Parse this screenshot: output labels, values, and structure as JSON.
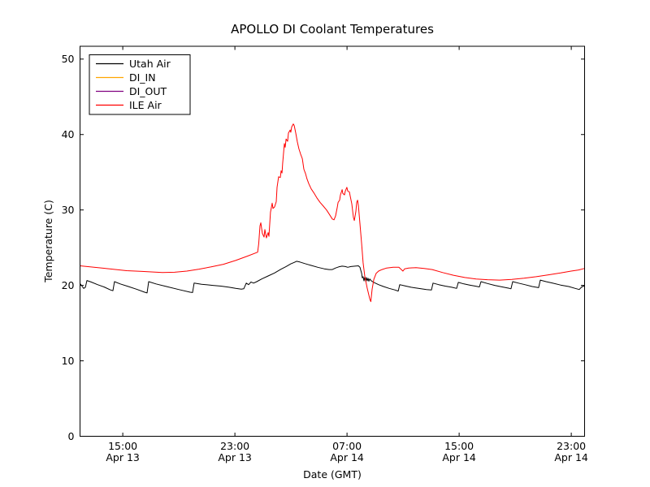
{
  "window": {
    "background": "#ffffff"
  },
  "chart_data": {
    "type": "line",
    "title": "APOLLO DI Coolant Temperatures",
    "xlabel": "Date (GMT)",
    "ylabel": "Temperature (C)",
    "grid": false,
    "legend_position": "upper-left",
    "x_axis": {
      "range_hours": [
        0,
        36
      ],
      "ticks": [
        {
          "t": 3.05,
          "time": "15:00",
          "date": "Apr 13"
        },
        {
          "t": 11.05,
          "time": "23:00",
          "date": "Apr 13"
        },
        {
          "t": 19.05,
          "time": "07:00",
          "date": "Apr 14"
        },
        {
          "t": 27.05,
          "time": "15:00",
          "date": "Apr 14"
        },
        {
          "t": 35.05,
          "time": "23:00",
          "date": "Apr 14"
        }
      ]
    },
    "y_axis": {
      "min": 0,
      "max": 51.7,
      "ticks": [
        0,
        10,
        20,
        30,
        40,
        50
      ]
    },
    "series": [
      {
        "name": "Utah Air",
        "color": "#000000",
        "points": [
          [
            0,
            20.25
          ],
          [
            0.14,
            19.9
          ],
          [
            0.26,
            19.6
          ],
          [
            0.38,
            19.75
          ],
          [
            0.49,
            20.65
          ],
          [
            0.78,
            20.45
          ],
          [
            1.25,
            20.1
          ],
          [
            1.71,
            19.8
          ],
          [
            2.17,
            19.4
          ],
          [
            2.35,
            19.3
          ],
          [
            2.46,
            20.5
          ],
          [
            2.87,
            20.2
          ],
          [
            3.45,
            19.85
          ],
          [
            4.03,
            19.5
          ],
          [
            4.61,
            19.1
          ],
          [
            4.78,
            19.0
          ],
          [
            4.9,
            20.5
          ],
          [
            5.42,
            20.2
          ],
          [
            6.17,
            19.85
          ],
          [
            7.04,
            19.45
          ],
          [
            7.86,
            19.1
          ],
          [
            8.03,
            19.05
          ],
          [
            8.14,
            20.3
          ],
          [
            8.67,
            20.15
          ],
          [
            9.48,
            20.0
          ],
          [
            10.06,
            19.9
          ],
          [
            10.64,
            19.75
          ],
          [
            11.1,
            19.6
          ],
          [
            11.51,
            19.5
          ],
          [
            11.68,
            19.55
          ],
          [
            11.86,
            20.3
          ],
          [
            12.03,
            20.1
          ],
          [
            12.2,
            20.45
          ],
          [
            12.38,
            20.3
          ],
          [
            12.61,
            20.5
          ],
          [
            12.96,
            20.85
          ],
          [
            13.42,
            21.25
          ],
          [
            13.88,
            21.65
          ],
          [
            14.35,
            22.15
          ],
          [
            14.7,
            22.5
          ],
          [
            15.04,
            22.85
          ],
          [
            15.28,
            23.05
          ],
          [
            15.45,
            23.2
          ],
          [
            15.68,
            23.1
          ],
          [
            16.03,
            22.9
          ],
          [
            16.49,
            22.65
          ],
          [
            16.96,
            22.4
          ],
          [
            17.42,
            22.2
          ],
          [
            17.77,
            22.1
          ],
          [
            18.0,
            22.1
          ],
          [
            18.23,
            22.3
          ],
          [
            18.46,
            22.45
          ],
          [
            18.7,
            22.55
          ],
          [
            18.93,
            22.5
          ],
          [
            19.1,
            22.4
          ],
          [
            19.33,
            22.5
          ],
          [
            19.62,
            22.55
          ],
          [
            19.86,
            22.6
          ],
          [
            19.97,
            22.4
          ],
          [
            20.09,
            21.6
          ],
          [
            20.14,
            21.0
          ],
          [
            20.2,
            21.15
          ],
          [
            20.26,
            20.6
          ],
          [
            20.32,
            21.1
          ],
          [
            20.38,
            20.55
          ],
          [
            20.43,
            21.05
          ],
          [
            20.49,
            20.6
          ],
          [
            20.55,
            20.95
          ],
          [
            20.61,
            20.55
          ],
          [
            20.67,
            20.85
          ],
          [
            20.78,
            20.6
          ],
          [
            20.96,
            20.4
          ],
          [
            21.3,
            20.1
          ],
          [
            21.65,
            19.85
          ],
          [
            22.06,
            19.6
          ],
          [
            22.46,
            19.4
          ],
          [
            22.7,
            19.25
          ],
          [
            22.81,
            20.1
          ],
          [
            23.16,
            19.95
          ],
          [
            23.62,
            19.75
          ],
          [
            24.14,
            19.6
          ],
          [
            24.72,
            19.45
          ],
          [
            25.07,
            19.4
          ],
          [
            25.19,
            20.3
          ],
          [
            25.59,
            20.1
          ],
          [
            26.06,
            19.9
          ],
          [
            26.52,
            19.75
          ],
          [
            26.87,
            19.6
          ],
          [
            26.99,
            20.4
          ],
          [
            27.39,
            20.2
          ],
          [
            27.8,
            20.05
          ],
          [
            28.2,
            19.9
          ],
          [
            28.49,
            19.8
          ],
          [
            28.61,
            20.5
          ],
          [
            29.07,
            20.25
          ],
          [
            29.59,
            20.0
          ],
          [
            30.12,
            19.8
          ],
          [
            30.64,
            19.6
          ],
          [
            30.75,
            19.55
          ],
          [
            30.87,
            20.5
          ],
          [
            31.28,
            20.3
          ],
          [
            31.74,
            20.1
          ],
          [
            32.26,
            19.85
          ],
          [
            32.72,
            19.7
          ],
          [
            32.84,
            20.7
          ],
          [
            33.25,
            20.5
          ],
          [
            33.71,
            20.3
          ],
          [
            34.29,
            20.05
          ],
          [
            34.87,
            19.85
          ],
          [
            35.33,
            19.6
          ],
          [
            35.62,
            19.45
          ],
          [
            35.8,
            19.8
          ],
          [
            36.0,
            19.95
          ]
        ]
      },
      {
        "name": "DI_IN",
        "color": "#ffa500",
        "points": []
      },
      {
        "name": "DI_OUT",
        "color": "#800080",
        "points": []
      },
      {
        "name": "ILE Air",
        "color": "#ff0000",
        "points": [
          [
            0,
            22.6
          ],
          [
            1.83,
            22.25
          ],
          [
            3.33,
            21.95
          ],
          [
            4.43,
            21.85
          ],
          [
            5.88,
            21.7
          ],
          [
            6.75,
            21.75
          ],
          [
            7.62,
            21.9
          ],
          [
            8.49,
            22.15
          ],
          [
            9.36,
            22.45
          ],
          [
            10.23,
            22.8
          ],
          [
            11.1,
            23.3
          ],
          [
            11.97,
            23.9
          ],
          [
            12.67,
            24.4
          ],
          [
            12.75,
            25.5
          ],
          [
            12.84,
            27.9
          ],
          [
            12.9,
            28.3
          ],
          [
            13.01,
            26.9
          ],
          [
            13.13,
            26.4
          ],
          [
            13.19,
            27.4
          ],
          [
            13.3,
            26.3
          ],
          [
            13.42,
            27.0
          ],
          [
            13.48,
            26.5
          ],
          [
            13.59,
            29.7
          ],
          [
            13.71,
            30.9
          ],
          [
            13.77,
            30.2
          ],
          [
            13.88,
            30.4
          ],
          [
            14.0,
            31.1
          ],
          [
            14.06,
            33.0
          ],
          [
            14.17,
            34.4
          ],
          [
            14.29,
            34.3
          ],
          [
            14.35,
            35.2
          ],
          [
            14.41,
            34.9
          ],
          [
            14.46,
            36.2
          ],
          [
            14.58,
            38.8
          ],
          [
            14.64,
            38.3
          ],
          [
            14.7,
            39.4
          ],
          [
            14.81,
            39.1
          ],
          [
            14.87,
            40.2
          ],
          [
            14.99,
            40.6
          ],
          [
            15.04,
            40.3
          ],
          [
            15.1,
            41.0
          ],
          [
            15.22,
            41.4
          ],
          [
            15.28,
            41.2
          ],
          [
            15.39,
            40.2
          ],
          [
            15.51,
            39.0
          ],
          [
            15.62,
            38.1
          ],
          [
            15.74,
            37.4
          ],
          [
            15.86,
            36.8
          ],
          [
            15.97,
            35.4
          ],
          [
            16.09,
            34.8
          ],
          [
            16.2,
            34.1
          ],
          [
            16.32,
            33.5
          ],
          [
            16.49,
            32.8
          ],
          [
            16.67,
            32.3
          ],
          [
            16.9,
            31.6
          ],
          [
            17.13,
            31.0
          ],
          [
            17.36,
            30.5
          ],
          [
            17.59,
            30.0
          ],
          [
            17.83,
            29.3
          ],
          [
            18.0,
            28.8
          ],
          [
            18.12,
            28.7
          ],
          [
            18.23,
            29.2
          ],
          [
            18.35,
            30.3
          ],
          [
            18.41,
            31.0
          ],
          [
            18.52,
            31.3
          ],
          [
            18.58,
            32.0
          ],
          [
            18.7,
            32.7
          ],
          [
            18.75,
            32.2
          ],
          [
            18.87,
            32.0
          ],
          [
            18.93,
            32.5
          ],
          [
            19.04,
            33.0
          ],
          [
            19.1,
            32.5
          ],
          [
            19.22,
            32.4
          ],
          [
            19.28,
            31.8
          ],
          [
            19.39,
            30.8
          ],
          [
            19.51,
            29.0
          ],
          [
            19.57,
            28.6
          ],
          [
            19.68,
            29.8
          ],
          [
            19.74,
            31.0
          ],
          [
            19.8,
            31.3
          ],
          [
            19.86,
            30.6
          ],
          [
            19.97,
            28.2
          ],
          [
            20.09,
            25.5
          ],
          [
            20.2,
            23.0
          ],
          [
            20.32,
            21.2
          ],
          [
            20.49,
            19.6
          ],
          [
            20.67,
            18.2
          ],
          [
            20.75,
            17.85
          ],
          [
            20.84,
            19.5
          ],
          [
            20.96,
            20.8
          ],
          [
            21.13,
            21.6
          ],
          [
            21.3,
            21.9
          ],
          [
            21.54,
            22.1
          ],
          [
            21.88,
            22.3
          ],
          [
            22.35,
            22.4
          ],
          [
            22.75,
            22.4
          ],
          [
            22.93,
            22.1
          ],
          [
            23.04,
            21.9
          ],
          [
            23.16,
            22.2
          ],
          [
            23.45,
            22.3
          ],
          [
            23.97,
            22.35
          ],
          [
            24.55,
            22.25
          ],
          [
            25.13,
            22.1
          ],
          [
            25.88,
            21.7
          ],
          [
            26.64,
            21.35
          ],
          [
            27.45,
            21.05
          ],
          [
            28.26,
            20.85
          ],
          [
            29.07,
            20.75
          ],
          [
            29.94,
            20.7
          ],
          [
            30.81,
            20.8
          ],
          [
            31.68,
            20.95
          ],
          [
            32.55,
            21.15
          ],
          [
            33.42,
            21.4
          ],
          [
            34.29,
            21.65
          ],
          [
            35.04,
            21.9
          ],
          [
            35.57,
            22.05
          ],
          [
            36.0,
            22.25
          ]
        ]
      }
    ]
  }
}
